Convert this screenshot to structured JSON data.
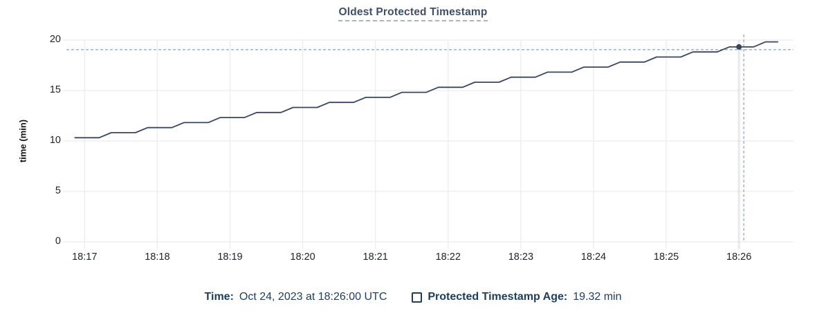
{
  "header": {
    "title": "Oldest Protected Timestamp"
  },
  "legend": {
    "time_label": "Time:",
    "time_value": "Oct 24, 2023 at 18:26:00 UTC",
    "series_label": "Protected Timestamp Age:",
    "series_value": "19.32 min"
  },
  "chart_data": {
    "type": "line",
    "title": "Oldest Protected Timestamp",
    "xlabel": "",
    "ylabel": "time (min)",
    "ylim": [
      0,
      20
    ],
    "y_ticks": [
      0,
      5,
      10,
      15,
      20
    ],
    "x_domain": [
      "18:16:45",
      "18:26:45"
    ],
    "x_ticks": [
      "18:17",
      "18:18",
      "18:19",
      "18:20",
      "18:21",
      "18:22",
      "18:23",
      "18:24",
      "18:25",
      "18:26"
    ],
    "grid": true,
    "legend_position": "bottom-center",
    "series": [
      {
        "name": "Protected Timestamp Age",
        "color": "#39455c",
        "times": [
          "18:16:52",
          "18:17:02",
          "18:17:12",
          "18:17:22",
          "18:17:32",
          "18:17:42",
          "18:17:52",
          "18:18:02",
          "18:18:12",
          "18:18:22",
          "18:18:32",
          "18:18:42",
          "18:18:52",
          "18:19:02",
          "18:19:12",
          "18:19:22",
          "18:19:32",
          "18:19:42",
          "18:19:52",
          "18:20:02",
          "18:20:12",
          "18:20:22",
          "18:20:32",
          "18:20:42",
          "18:20:52",
          "18:21:02",
          "18:21:12",
          "18:21:22",
          "18:21:32",
          "18:21:42",
          "18:21:52",
          "18:22:02",
          "18:22:12",
          "18:22:22",
          "18:22:32",
          "18:22:42",
          "18:22:52",
          "18:23:02",
          "18:23:12",
          "18:23:22",
          "18:23:32",
          "18:23:42",
          "18:23:52",
          "18:24:02",
          "18:24:12",
          "18:24:22",
          "18:24:32",
          "18:24:42",
          "18:24:52",
          "18:25:02",
          "18:25:12",
          "18:25:22",
          "18:25:32",
          "18:25:42",
          "18:25:52",
          "18:26:02",
          "18:26:12",
          "18:26:22",
          "18:26:32"
        ],
        "values": [
          10.32,
          10.32,
          10.32,
          10.82,
          10.82,
          10.82,
          11.32,
          11.32,
          11.32,
          11.82,
          11.82,
          11.82,
          12.32,
          12.32,
          12.32,
          12.82,
          12.82,
          12.82,
          13.32,
          13.32,
          13.32,
          13.82,
          13.82,
          13.82,
          14.32,
          14.32,
          14.32,
          14.82,
          14.82,
          14.82,
          15.32,
          15.32,
          15.32,
          15.82,
          15.82,
          15.82,
          16.32,
          16.32,
          16.32,
          16.82,
          16.82,
          16.82,
          17.32,
          17.32,
          17.32,
          17.82,
          17.82,
          17.82,
          18.32,
          18.32,
          18.32,
          18.82,
          18.82,
          18.82,
          19.32,
          19.32,
          19.32,
          19.82,
          19.82
        ]
      }
    ],
    "hover_point": {
      "time": "18:26:00",
      "value": 19.32
    },
    "crosshair": {
      "time": "18:26:04",
      "value": 19.05
    },
    "colors": {
      "line": "#39455c",
      "grid": "#ececec",
      "crosshair": "#9db0c2",
      "tick_text": "#20242b",
      "title_text": "#3f4e69",
      "legend_text": "#1d3c5e"
    }
  }
}
